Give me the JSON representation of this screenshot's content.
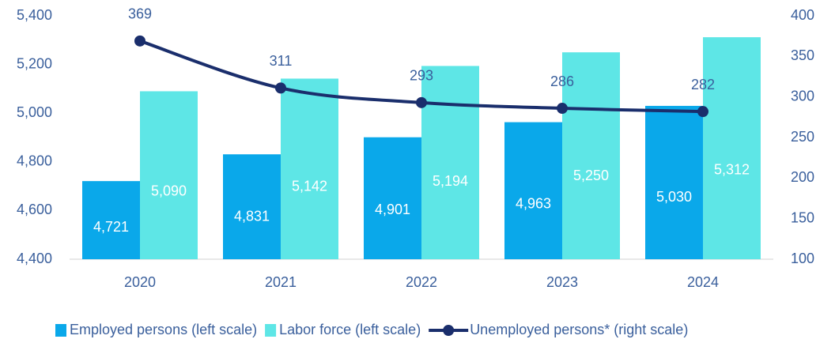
{
  "chart_data": {
    "type": "bar_line",
    "categories": [
      "2020",
      "2021",
      "2022",
      "2023",
      "2024"
    ],
    "series": [
      {
        "name": "Employed persons (left scale)",
        "color": "#0aa8ea",
        "values": [
          4721,
          4831,
          4901,
          4963,
          5030
        ],
        "value_labels": [
          "4,721",
          "4,831",
          "4,901",
          "4,963",
          "5,030"
        ]
      },
      {
        "name": "Labor force (left scale)",
        "color": "#5ee6e6",
        "values": [
          5090,
          5142,
          5194,
          5250,
          5312
        ],
        "value_labels": [
          "5,090",
          "5,142",
          "5,194",
          "5,250",
          "5,312"
        ]
      },
      {
        "name": "Unemployed persons* (right scale)",
        "color": "#1a2e6c",
        "axis": "y2",
        "values": [
          369,
          311,
          293,
          286,
          282
        ]
      }
    ],
    "ylim": [
      4400,
      5400
    ],
    "yticks": [
      {
        "value": 4400,
        "label": "4,400"
      },
      {
        "value": 4600,
        "label": "4,600"
      },
      {
        "value": 4800,
        "label": "4,800"
      },
      {
        "value": 5000,
        "label": "5,000"
      },
      {
        "value": 5200,
        "label": "5,200"
      },
      {
        "value": 5400,
        "label": "5,400"
      }
    ],
    "y2lim": [
      100,
      400
    ],
    "y2ticks": [
      100,
      150,
      200,
      250,
      300,
      350,
      400
    ],
    "legend": "bottom"
  }
}
